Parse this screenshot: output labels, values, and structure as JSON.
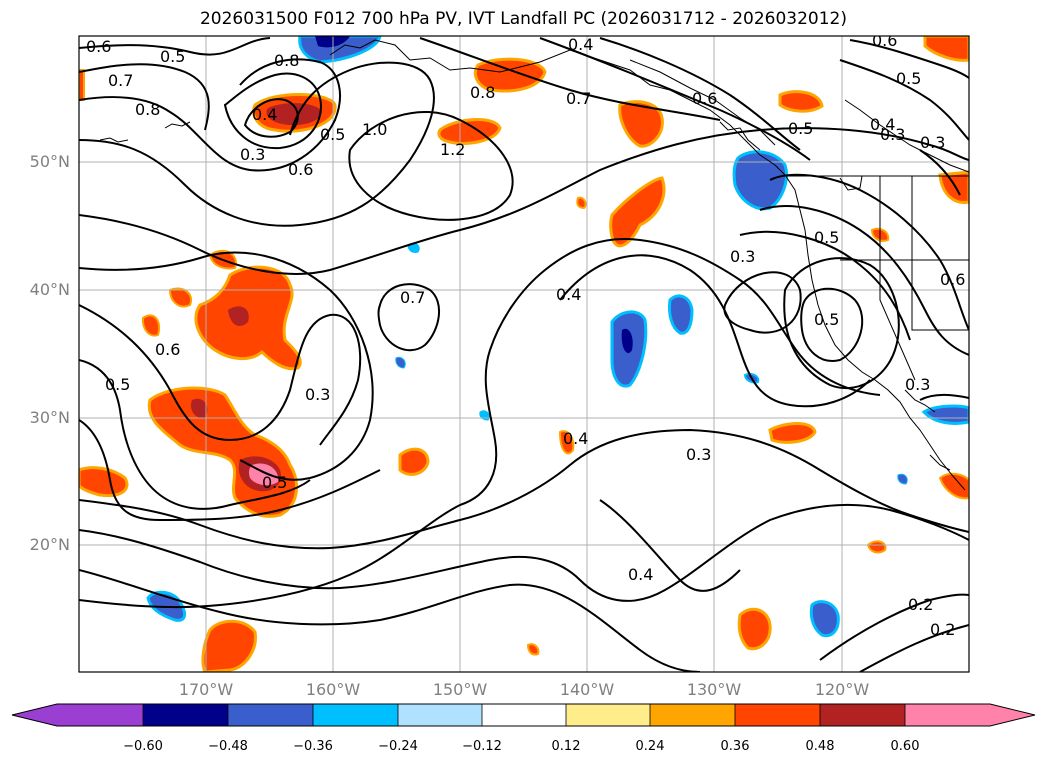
{
  "title": "2026031500 F012 700 hPa PV, IVT Landfall PC (2026031712 - 2026032012)",
  "lat_labels": [
    "50°N",
    "40°N",
    "30°N",
    "20°N"
  ],
  "lon_labels": [
    "170°W",
    "160°W",
    "150°W",
    "140°W",
    "130°W",
    "120°W"
  ],
  "colorbar": {
    "ticks": [
      "−0.60",
      "−0.48",
      "−0.36",
      "−0.24",
      "−0.12",
      "0.12",
      "0.24",
      "0.36",
      "0.48",
      "0.60"
    ],
    "colors": [
      "#9b3fd2",
      "#00008b",
      "#3a5fcd",
      "#00bfff",
      "#b0e2ff",
      "#ffffff",
      "#ffec8b",
      "#ffa500",
      "#ff4500",
      "#b22222",
      "#ff82ab"
    ]
  },
  "contour_labels": [
    "0.6",
    "0.5",
    "0.8",
    "0.4",
    "0.6",
    "0.7",
    "0.8",
    "0.7",
    "0.5",
    "0.4",
    "0.3",
    "0.8",
    "1.0",
    "0.3",
    "0.6",
    "0.5",
    "1.2",
    "0.5",
    "0.3",
    "0.6",
    "0.4",
    "0.5",
    "0.7",
    "0.6",
    "0.5",
    "0.4",
    "0.3",
    "0.4",
    "0.5",
    "0.3",
    "0.6",
    "0.2",
    "0.2",
    "0.3"
  ]
}
